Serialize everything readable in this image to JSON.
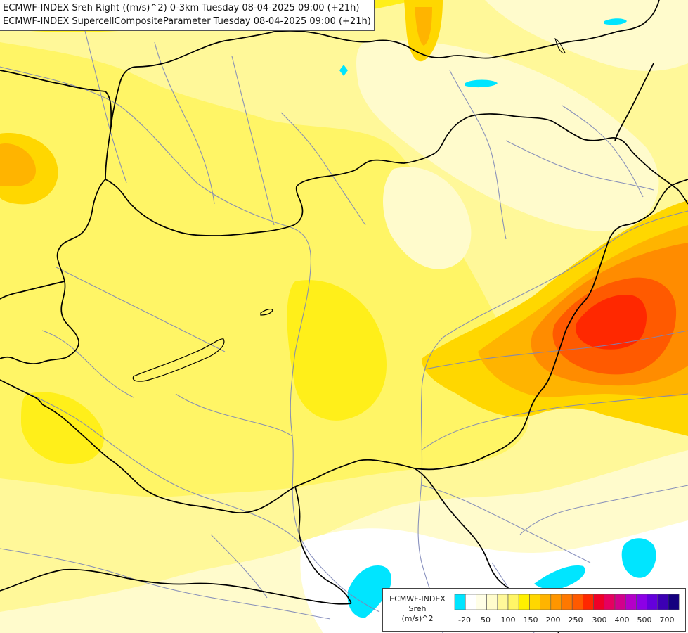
{
  "title": {
    "line1": "ECMWF-INDEX Sreh Right ((m/s)^2) 0-3km Tuesday 08-04-2025 09:00 (+21h)",
    "line2": "ECMWF-INDEX SupercellCompositeParameter Tuesday 08-04-2025 09:00 (+21h)"
  },
  "legend": {
    "line1": "ECMWF-INDEX",
    "line2": "Sreh",
    "line3": "(m/s)^2",
    "colors": [
      "#00e5ff",
      "#ffffff",
      "#fffee6",
      "#fffccc",
      "#fff899",
      "#fff566",
      "#fff000",
      "#ffd700",
      "#ffb400",
      "#ff9600",
      "#ff7800",
      "#ff5a00",
      "#ff2800",
      "#f00028",
      "#e60060",
      "#d2008c",
      "#b400c8",
      "#8c00e6",
      "#6400dc",
      "#3c00b4",
      "#14007f"
    ],
    "ticks": [
      "-20",
      "50",
      "100",
      "150",
      "200",
      "250",
      "300",
      "400",
      "500",
      "700"
    ]
  },
  "map": {
    "colors": {
      "pale": "#fffbcc",
      "light": "#fff899",
      "yellow": "#fff566",
      "bright": "#ffef1a",
      "gold": "#ffd700",
      "amber": "#ffb400",
      "orange": "#ff8c00",
      "deep-orange": "#ff5a00",
      "red": "#ff2800",
      "cyan": "#00e5ff",
      "white": "#ffffff",
      "border": "#000000",
      "river": "#7d86b8"
    }
  }
}
